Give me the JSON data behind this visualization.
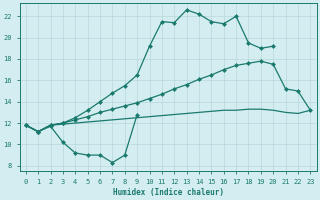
{
  "xlabel": "Humidex (Indice chaleur)",
  "xlim": [
    -0.5,
    23.5
  ],
  "ylim": [
    7.5,
    23.2
  ],
  "yticks": [
    8,
    10,
    12,
    14,
    16,
    18,
    20,
    22
  ],
  "xticks": [
    0,
    1,
    2,
    3,
    4,
    5,
    6,
    7,
    8,
    9,
    10,
    11,
    12,
    13,
    14,
    15,
    16,
    17,
    18,
    19,
    20,
    21,
    22,
    23
  ],
  "bg_color": "#d4edf0",
  "line_color": "#1a7a6e",
  "grid_color": "#b8d8dc",
  "line_top_x": [
    0,
    1,
    2,
    3,
    4,
    5,
    6,
    7,
    8,
    9,
    10,
    11,
    12,
    13,
    14,
    15,
    16,
    17,
    18,
    19,
    20
  ],
  "line_top_y": [
    11.8,
    11.2,
    11.8,
    12.0,
    12.5,
    13.2,
    14.0,
    14.8,
    15.5,
    16.5,
    19.2,
    21.5,
    21.4,
    22.6,
    22.2,
    21.5,
    21.3,
    22.0,
    19.5,
    19.0,
    19.2
  ],
  "line_mid_upper_x": [
    0,
    1,
    2,
    3,
    4,
    5,
    6,
    7,
    8,
    9,
    10,
    11,
    12,
    13,
    14,
    15,
    16,
    17,
    18,
    19,
    20,
    21,
    22,
    23
  ],
  "line_mid_upper_y": [
    11.8,
    11.2,
    11.8,
    12.0,
    12.3,
    12.6,
    13.0,
    13.3,
    13.6,
    13.9,
    14.3,
    14.7,
    15.2,
    15.6,
    16.1,
    16.5,
    17.0,
    17.4,
    17.6,
    17.8,
    17.5,
    15.2,
    15.0,
    13.2
  ],
  "line_mid_lower_x": [
    0,
    1,
    2,
    3,
    4,
    5,
    6,
    7,
    8,
    9,
    10,
    11,
    12,
    13,
    14,
    15,
    16,
    17,
    18,
    19,
    20,
    21,
    22,
    23
  ],
  "line_mid_lower_y": [
    11.8,
    11.2,
    11.8,
    11.9,
    12.0,
    12.1,
    12.2,
    12.3,
    12.4,
    12.5,
    12.6,
    12.7,
    12.8,
    12.9,
    13.0,
    13.1,
    13.2,
    13.2,
    13.3,
    13.3,
    13.2,
    13.0,
    12.9,
    13.2
  ],
  "line_bot_x": [
    0,
    1,
    2,
    3,
    4,
    5,
    6,
    7,
    8,
    9
  ],
  "line_bot_y": [
    11.8,
    11.2,
    11.7,
    10.2,
    9.2,
    9.0,
    9.0,
    8.3,
    9.0,
    12.8
  ]
}
